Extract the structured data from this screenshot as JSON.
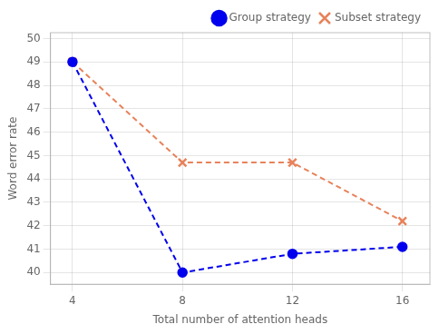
{
  "chart_data": {
    "type": "line",
    "x": [
      4,
      8,
      12,
      16
    ],
    "series": [
      {
        "name": "Group strategy",
        "color": "#0000ee",
        "values": [
          49.0,
          40.0,
          40.8,
          41.1
        ],
        "marker": "circle",
        "line_style": "dashed"
      },
      {
        "name": "Subset strategy",
        "color": "#e8825a",
        "values": [
          49.0,
          44.7,
          44.7,
          42.2
        ],
        "marker": "x",
        "line_style": "dashed"
      }
    ],
    "x_label": "Total number of attention heads",
    "y_label": "Word error rate",
    "xlim": [
      3.2,
      17.0
    ],
    "ylim": [
      39.5,
      50.25
    ],
    "xticks": [
      4,
      8,
      12,
      16
    ],
    "yticks": [
      40,
      41,
      42,
      43,
      44,
      45,
      46,
      47,
      48,
      49,
      50
    ],
    "grid": true,
    "legend": "upper right"
  }
}
